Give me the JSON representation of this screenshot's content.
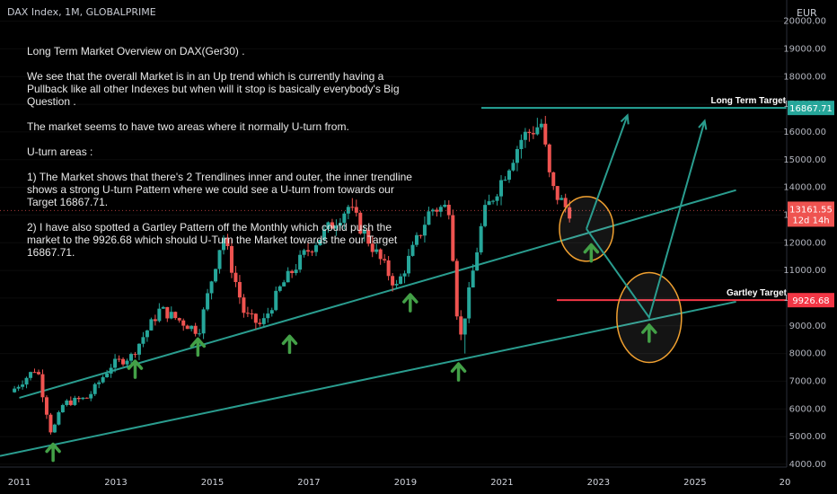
{
  "header": {
    "symbol": "DAX Index, 1M, GLOBALPRIME",
    "currency": "EUR"
  },
  "notes": [
    "Long Term Market Overview on DAX(Ger30) .",
    "We see that the overall Market is in an Up trend which is currently having a Pullback like all other Indexes but when will it stop is basically everybody's Big Question .",
    "The market seems to have two areas where it normally U-turn from.",
    "U-turn areas :",
    "1) The Market shows that there's 2 Trendlines inner and outer, the inner trendline shows a strong U-turn Pattern where we could see a U-turn from towards our Target 16867.71.",
    "2) I have also spotted a Gartley Pattern off the Monthly which could push the market to the 9926.68 which should U-Turn the Market towards the our Target 16867.71."
  ],
  "colors": {
    "up": "#26a69a",
    "down": "#ef5350",
    "trend": "#2a9d8f",
    "target_line": "#26a69a",
    "gartley_line": "#f23645",
    "ellipse": "#f0a030",
    "arrow": "#43a047"
  },
  "chart_data": {
    "type": "candlestick",
    "title": "DAX Index, 1M, GLOBALPRIME",
    "ylabel": "EUR",
    "ylim": [
      3900,
      20700
    ],
    "xlim": [
      2010.6,
      2026.9
    ],
    "yticks": [
      "4000.00",
      "5000.00",
      "6000.00",
      "7000.00",
      "8000.00",
      "9000.00",
      "10000.00",
      "11000.00",
      "12000.00",
      "13000.00",
      "14000.00",
      "15000.00",
      "16000.00",
      "17000.00",
      "18000.00",
      "19000.00",
      "20000.00"
    ],
    "xticks": [
      "2011",
      "2013",
      "2015",
      "2017",
      "2019",
      "2021",
      "2023",
      "2025",
      "20"
    ],
    "price_path": [
      [
        2010.9,
        6600
      ],
      [
        2011.45,
        7500
      ],
      [
        2011.75,
        5100
      ],
      [
        2012.0,
        6200
      ],
      [
        2012.5,
        6400
      ],
      [
        2013.0,
        7600
      ],
      [
        2013.4,
        7900
      ],
      [
        2014.0,
        9600
      ],
      [
        2014.8,
        8800
      ],
      [
        2015.3,
        12300
      ],
      [
        2015.75,
        9400
      ],
      [
        2016.1,
        9000
      ],
      [
        2016.5,
        10400
      ],
      [
        2017.0,
        11600
      ],
      [
        2017.9,
        13300
      ],
      [
        2018.9,
        10400
      ],
      [
        2019.6,
        13200
      ],
      [
        2020.0,
        13300
      ],
      [
        2020.2,
        8300
      ],
      [
        2020.7,
        13000
      ],
      [
        2021.0,
        14000
      ],
      [
        2021.5,
        15800
      ],
      [
        2021.9,
        16300
      ],
      [
        2022.1,
        14000
      ],
      [
        2022.45,
        13161.55
      ]
    ],
    "current_price": {
      "value": "13161.55",
      "countdown": "12d 14h"
    },
    "levels": [
      {
        "name": "Long Term Target",
        "value": "16867.71"
      },
      {
        "name": "Gartley Target",
        "value": "9926.68"
      }
    ],
    "trendlines": [
      {
        "name": "outer",
        "from": [
          2010.6,
          4300
        ],
        "to": [
          2025.85,
          9870
        ]
      },
      {
        "name": "inner",
        "from": [
          2011.0,
          6400
        ],
        "to": [
          2025.85,
          13900
        ]
      }
    ],
    "projections": [
      {
        "name": "path-1",
        "points": [
          [
            2022.75,
            12500
          ],
          [
            2023.6,
            16600
          ]
        ]
      },
      {
        "name": "path-2",
        "points": [
          [
            2022.75,
            12500
          ],
          [
            2024.05,
            9300
          ],
          [
            2025.2,
            16400
          ]
        ]
      }
    ],
    "uturn_markers": [
      [
        2011.7,
        4400
      ],
      [
        2013.4,
        7400
      ],
      [
        2014.7,
        8200
      ],
      [
        2016.6,
        8300
      ],
      [
        2019.1,
        9800
      ],
      [
        2020.1,
        7300
      ],
      [
        2022.85,
        11600
      ],
      [
        2024.05,
        8700
      ]
    ]
  }
}
